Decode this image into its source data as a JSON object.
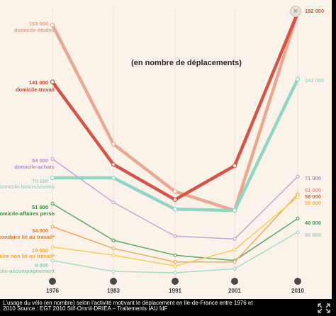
{
  "close_glyph": "×",
  "caption": {
    "line1": "L'usage du vélo (en nombre) selon l'activité motivant le déplacement en Île-de-France entre 1976 et",
    "line2": "2010 Source : EGT 2010 Stif-Omnil-DRIEA – Traitements IAU îdF"
  },
  "icons": {
    "close": "close-icon",
    "fullscreen": "fullscreen-icon"
  },
  "chart_data": {
    "type": "line",
    "title": "",
    "subtitle": "(en nombre de déplacements)",
    "x": [
      "1976",
      "1983",
      "1991",
      "2001",
      "2010"
    ],
    "xlabel": "",
    "ylabel": "",
    "grid": false,
    "series": [
      {
        "name": "domicile-études",
        "color": "#eba78f",
        "width": 4.5,
        "values": [
          183000,
          95000,
          60000,
          46000,
          192000
        ],
        "start_label": "183 000",
        "end_label": "192 000",
        "end_color": "#d9503f",
        "name_color": "#e9a08a",
        "label_color": "#e9a08a"
      },
      {
        "name": "domicile-travail",
        "color": "#d55445",
        "width": 4.5,
        "values": [
          141000,
          80000,
          54000,
          79000,
          192000
        ],
        "start_label": "141 000",
        "end_label": "",
        "end_color": "#d55445",
        "name_color": "#d0402f",
        "label_color": "#d0402f"
      },
      {
        "name": "domicile-loisirs/visites",
        "color": "#8fd6c4",
        "width": 4.5,
        "values": [
          70100,
          70100,
          47000,
          46000,
          143000
        ],
        "start_label": "70 100",
        "end_label": "143 000",
        "end_color": "#a0d8c8",
        "name_color": "#a0d3c4",
        "label_color": "#a0d3c4"
      },
      {
        "name": "domicile-achats",
        "color": "#c5a6d6",
        "width": 1.5,
        "values": [
          84000,
          52000,
          27000,
          25000,
          71000
        ],
        "start_label": "84 000",
        "end_label": "71 000",
        "end_color": "#b08fcc",
        "name_color": "#b08fcc",
        "label_color": "#b08fcc"
      },
      {
        "name": "domicile-affaires perso",
        "color": "#58a862",
        "width": 1.5,
        "values": [
          51000,
          24000,
          13000,
          9000,
          40000
        ],
        "start_label": "51 000",
        "end_label": "40 000",
        "end_color": "#3e9a4c",
        "name_color": "#2d8a3c",
        "label_color": "#2d8a3c"
      },
      {
        "name": "secondaire lié au travail*",
        "color": "#f0a85a",
        "width": 1.5,
        "values": [
          34000,
          18000,
          8000,
          8000,
          58000
        ],
        "start_label": "34 000",
        "end_label": "58 000",
        "end_color": "#e2622e",
        "name_color": "#e07a28",
        "label_color": "#e07a28"
      },
      {
        "name": "secondaire non lié au travail*",
        "color": "#f4cd5a",
        "width": 1.5,
        "values": [
          19000,
          13000,
          5000,
          17000,
          56000
        ],
        "start_label": "19 000",
        "end_label": "56 000",
        "end_color": "#f1b443",
        "name_color": "#ecab35",
        "label_color": "#ecab35"
      },
      {
        "name": "domicile-accompagnement",
        "color": "#a8ddc4",
        "width": 1.5,
        "values": [
          9000,
          1000,
          0,
          3000,
          30000
        ],
        "start_label": "9 000",
        "end_label": "30 000",
        "end_color": "#9cd6be",
        "name_color": "#8fcfb2",
        "label_color": "#8fcfb2"
      }
    ],
    "extra_end_labels": [
      {
        "text": "61 000",
        "color": "#e9937a"
      }
    ]
  }
}
